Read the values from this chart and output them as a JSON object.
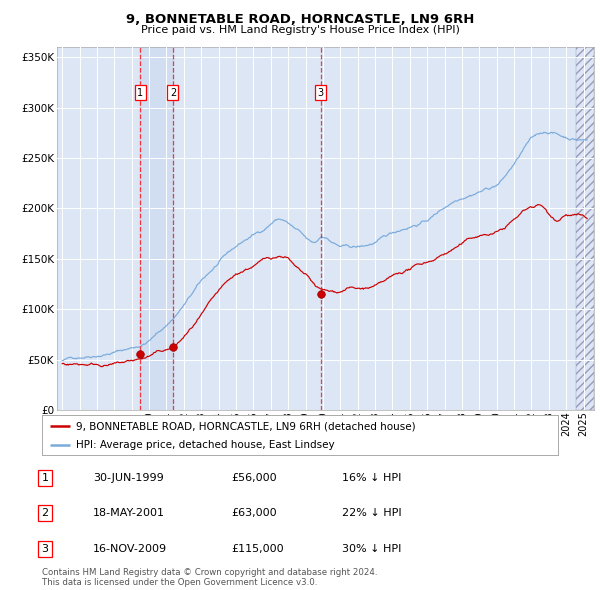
{
  "title": "9, BONNETABLE ROAD, HORNCASTLE, LN9 6RH",
  "subtitle": "Price paid vs. HM Land Registry's House Price Index (HPI)",
  "bg_color": "#dce6f5",
  "grid_color": "#ffffff",
  "hpi_color": "#7aabdb",
  "price_color": "#cc0000",
  "ylim": [
    0,
    360000
  ],
  "yticks": [
    0,
    50000,
    100000,
    150000,
    200000,
    250000,
    300000,
    350000
  ],
  "ytick_labels": [
    "£0",
    "£50K",
    "£100K",
    "£150K",
    "£200K",
    "£250K",
    "£300K",
    "£350K"
  ],
  "xlim_start": 1994.7,
  "xlim_end": 2025.6,
  "transactions": [
    {
      "num": 1,
      "date_num": 1999.49,
      "price": 56000,
      "label": "1"
    },
    {
      "num": 2,
      "date_num": 2001.37,
      "price": 63000,
      "label": "2"
    },
    {
      "num": 3,
      "date_num": 2009.88,
      "price": 115000,
      "label": "3"
    }
  ],
  "legend_price_label": "9, BONNETABLE ROAD, HORNCASTLE, LN9 6RH (detached house)",
  "legend_hpi_label": "HPI: Average price, detached house, East Lindsey",
  "table_rows": [
    {
      "num": "1",
      "date": "30-JUN-1999",
      "price": "£56,000",
      "hpi": "16% ↓ HPI"
    },
    {
      "num": "2",
      "date": "18-MAY-2001",
      "price": "£63,000",
      "hpi": "22% ↓ HPI"
    },
    {
      "num": "3",
      "date": "16-NOV-2009",
      "price": "£115,000",
      "hpi": "30% ↓ HPI"
    }
  ],
  "footnote": "Contains HM Land Registry data © Crown copyright and database right 2024.\nThis data is licensed under the Open Government Licence v3.0."
}
